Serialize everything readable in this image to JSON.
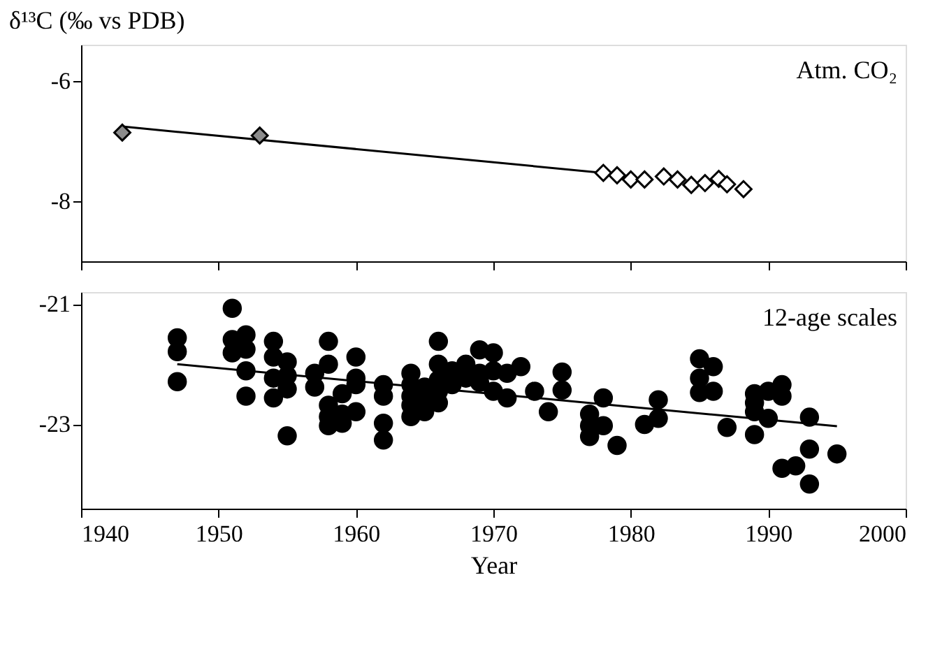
{
  "chart_data": [
    {
      "type": "scatter",
      "ylabel": "δ¹³C (‰ vs PDB)",
      "annotations": [
        "Atm. CO₂"
      ],
      "grid": false,
      "tick_labels": "y",
      "xlim": [
        1940,
        2000
      ],
      "ylim": [
        -9,
        -5.4
      ],
      "xticks": [
        1940,
        1950,
        1960,
        1970,
        1980,
        1990,
        2000
      ],
      "yticks": [
        -6,
        -8
      ],
      "series": [
        {
          "type": "line",
          "color": "#000000",
          "x": [
            1943,
            1978
          ],
          "values": [
            -6.76,
            -7.53
          ]
        },
        {
          "marker": "diamond",
          "color": "#8c8c8c",
          "x": [
            1943,
            1953
          ],
          "values": [
            -6.86,
            -6.91
          ]
        },
        {
          "marker": "diamond",
          "color": "#ffffff",
          "x": [
            1978,
            1979,
            1980,
            1981,
            1982.4,
            1983.4,
            1984.4,
            1985.4,
            1986.4,
            1987,
            1988.2
          ],
          "values": [
            -7.53,
            -7.57,
            -7.64,
            -7.64,
            -7.59,
            -7.64,
            -7.73,
            -7.7,
            -7.63,
            -7.72,
            -7.8
          ]
        }
      ]
    },
    {
      "type": "scatter",
      "xlabel": "Year",
      "annotations": [
        "12-age scales"
      ],
      "grid": false,
      "xlim": [
        1940,
        2000
      ],
      "ylim": [
        -24.4,
        -20.8
      ],
      "xticks": [
        1940,
        1950,
        1960,
        1970,
        1980,
        1990,
        2000
      ],
      "yticks": [
        -21,
        -23
      ],
      "series": [
        {
          "type": "line",
          "color": "#000000",
          "x": [
            1947,
            1995
          ],
          "values": [
            -22.0,
            -23.03
          ]
        },
        {
          "marker": "circle",
          "color": "#000000",
          "x": [
            1947,
            1947,
            1947,
            1951,
            1951,
            1951,
            1952,
            1952,
            1952,
            1952,
            1954,
            1954,
            1954,
            1954,
            1955,
            1955,
            1955,
            1955,
            1957,
            1957,
            1958,
            1958,
            1958,
            1958,
            1958,
            1959,
            1959,
            1959,
            1960,
            1960,
            1960,
            1960,
            1962,
            1962,
            1962,
            1962,
            1964,
            1964,
            1964,
            1964,
            1964,
            1965,
            1965,
            1965,
            1966,
            1966,
            1966,
            1966,
            1966,
            1967,
            1967,
            1968,
            1968,
            1969,
            1969,
            1969,
            1970,
            1970,
            1970,
            1971,
            1971,
            1972,
            1973,
            1974,
            1975,
            1975,
            1977,
            1977,
            1977,
            1978,
            1978,
            1979,
            1981,
            1982,
            1982,
            1985,
            1985,
            1985,
            1986,
            1986,
            1987,
            1989,
            1989,
            1989,
            1989,
            1990,
            1990,
            1991,
            1991,
            1991,
            1992,
            1993,
            1993,
            1993,
            1995
          ],
          "values": [
            -21.56,
            -21.79,
            -22.29,
            -21.07,
            -21.59,
            -21.81,
            -21.51,
            -21.75,
            -22.11,
            -22.53,
            -21.62,
            -21.88,
            -22.23,
            -22.56,
            -21.96,
            -22.19,
            -22.41,
            -23.19,
            -22.15,
            -22.38,
            -21.62,
            -22.0,
            -22.68,
            -22.87,
            -23.02,
            -22.49,
            -22.83,
            -22.98,
            -21.88,
            -22.23,
            -22.34,
            -22.79,
            -22.34,
            -22.53,
            -22.98,
            -23.26,
            -22.15,
            -22.34,
            -22.53,
            -22.68,
            -22.87,
            -22.38,
            -22.6,
            -22.79,
            -21.62,
            -22.0,
            -22.26,
            -22.45,
            -22.64,
            -22.11,
            -22.34,
            -22.0,
            -22.23,
            -21.76,
            -22.15,
            -22.3,
            -21.81,
            -22.11,
            -22.45,
            -22.15,
            -22.56,
            -22.04,
            -22.45,
            -22.79,
            -22.13,
            -22.43,
            -22.83,
            -23.02,
            -23.2,
            -22.56,
            -23.02,
            -23.35,
            -23.0,
            -22.59,
            -22.9,
            -21.91,
            -22.23,
            -22.47,
            -22.04,
            -22.45,
            -23.05,
            -22.49,
            -22.64,
            -22.79,
            -23.17,
            -22.45,
            -22.9,
            -22.34,
            -22.53,
            -23.73,
            -23.69,
            -22.88,
            -23.41,
            -23.99,
            -23.49
          ]
        }
      ]
    }
  ]
}
